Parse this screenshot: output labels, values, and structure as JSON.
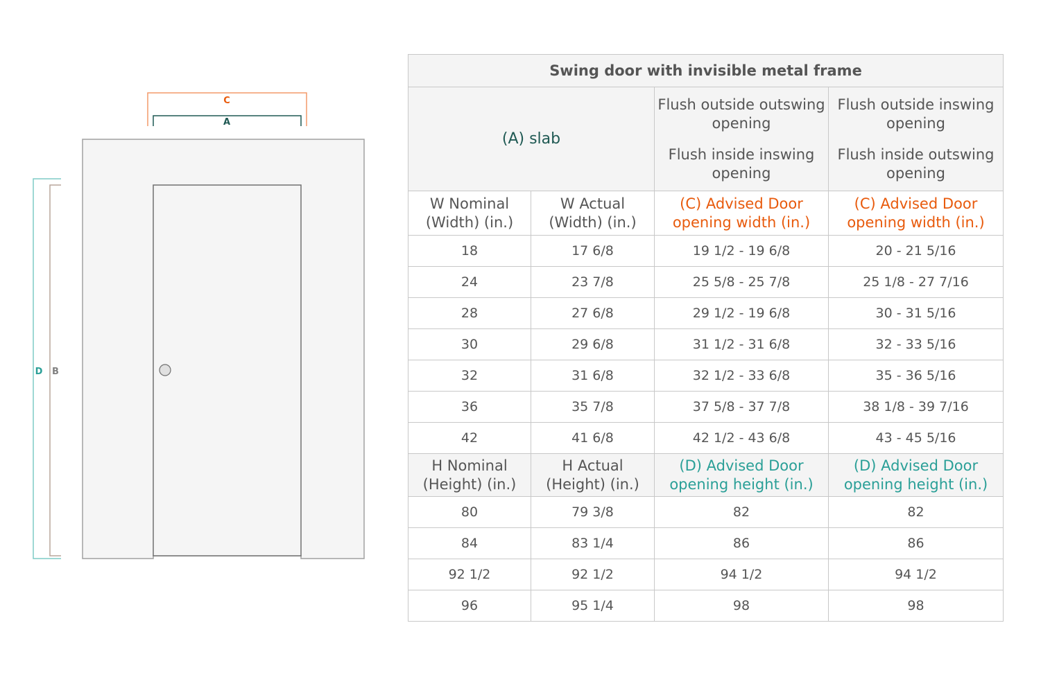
{
  "diagram": {
    "labels": {
      "C": "C",
      "A": "A",
      "D": "D",
      "B": "B"
    },
    "colors": {
      "C": "#f39a6a",
      "A": "#1f5953",
      "D": "#7fcbc6",
      "B": "#b8a59b",
      "frame": "#a0a0a0",
      "fill": "#f5f5f5"
    }
  },
  "table": {
    "title": "Swing door with invisible metal frame",
    "slab_label": "(A) slab",
    "col3_top": "Flush outside outswing opening",
    "col3_bottom": "Flush inside inswing opening",
    "col4_top": "Flush outside inswing opening",
    "col4_bottom": "Flush inside outswing opening",
    "width_headers": [
      "W Nominal (Width) (in.)",
      "W Actual (Width) (in.)",
      "(C) Advised Door opening width (in.)",
      "(C) Advised Door opening width (in.)"
    ],
    "width_rows": [
      [
        "18",
        "17 6/8",
        "19 1/2 - 19 6/8",
        "20 - 21 5/16"
      ],
      [
        "24",
        "23 7/8",
        "25 5/8 - 25 7/8",
        "25 1/8 - 27 7/16"
      ],
      [
        "28",
        "27 6/8",
        "29 1/2 - 19 6/8",
        "30 - 31 5/16"
      ],
      [
        "30",
        "29 6/8",
        "31 1/2 - 31 6/8",
        "32 - 33 5/16"
      ],
      [
        "32",
        "31 6/8",
        "32 1/2 - 33 6/8",
        "35 -  36 5/16"
      ],
      [
        "36",
        "35 7/8",
        "37 5/8 - 37 7/8",
        "38 1/8 - 39 7/16"
      ],
      [
        "42",
        "41 6/8",
        "42 1/2 - 43 6/8",
        "43 - 45 5/16"
      ]
    ],
    "height_headers": [
      "H Nominal (Height) (in.)",
      "H Actual (Height) (in.)",
      "(D) Advised Door opening height (in.)",
      "(D) Advised Door opening height (in.)"
    ],
    "height_rows": [
      [
        "80",
        "79 3/8",
        "82",
        "82"
      ],
      [
        "84",
        "83 1/4",
        "86",
        "86"
      ],
      [
        "92 1/2",
        "92 1/2",
        "94 1/2",
        "94 1/2"
      ],
      [
        "96",
        "95 1/4",
        "98",
        "98"
      ]
    ],
    "colors": {
      "orange": "#e85a0c",
      "teal": "#2a9f97",
      "slab": "#1f5953"
    }
  }
}
